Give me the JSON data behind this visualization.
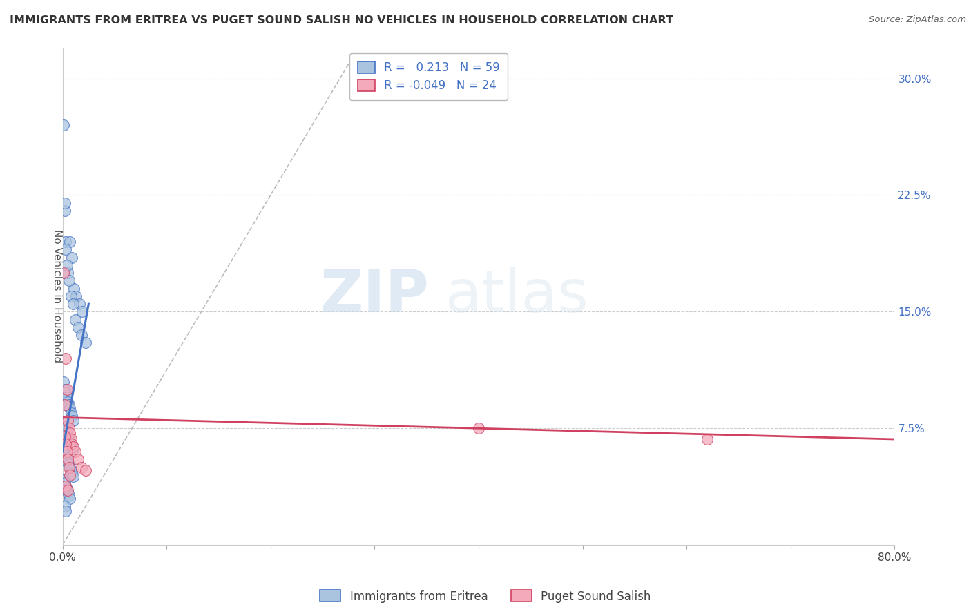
{
  "title": "IMMIGRANTS FROM ERITREA VS PUGET SOUND SALISH NO VEHICLES IN HOUSEHOLD CORRELATION CHART",
  "source": "Source: ZipAtlas.com",
  "ylabel": "No Vehicles in Household",
  "xlim": [
    0.0,
    0.8
  ],
  "ylim": [
    0.0,
    0.32
  ],
  "xticks": [
    0.0,
    0.1,
    0.2,
    0.3,
    0.4,
    0.5,
    0.6,
    0.7,
    0.8
  ],
  "xticklabels": [
    "0.0%",
    "",
    "",
    "",
    "",
    "",
    "",
    "",
    "80.0%"
  ],
  "yticks": [
    0.0,
    0.075,
    0.15,
    0.225,
    0.3
  ],
  "yticklabels": [
    "",
    "7.5%",
    "15.0%",
    "22.5%",
    "30.0%"
  ],
  "r1": 0.213,
  "n1": 59,
  "r2": -0.049,
  "n2": 24,
  "legend1": "Immigrants from Eritrea",
  "legend2": "Puget Sound Salish",
  "color1": "#aac4e0",
  "color2": "#f4aabb",
  "line_color1": "#4472c4",
  "line_color2": "#d04060",
  "watermark_zip": "ZIP",
  "watermark_atlas": "atlas",
  "blue_scatter_x": [
    0.001,
    0.002,
    0.003,
    0.005,
    0.007,
    0.009,
    0.011,
    0.013,
    0.016,
    0.019,
    0.002,
    0.003,
    0.004,
    0.006,
    0.008,
    0.01,
    0.012,
    0.015,
    0.018,
    0.022,
    0.001,
    0.002,
    0.003,
    0.004,
    0.005,
    0.006,
    0.007,
    0.008,
    0.009,
    0.01,
    0.001,
    0.002,
    0.003,
    0.004,
    0.005,
    0.006,
    0.007,
    0.008,
    0.009,
    0.01,
    0.001,
    0.002,
    0.003,
    0.004,
    0.005,
    0.006,
    0.007,
    0.008,
    0.009,
    0.01,
    0.001,
    0.002,
    0.003,
    0.004,
    0.005,
    0.006,
    0.007,
    0.002,
    0.003
  ],
  "blue_scatter_y": [
    0.27,
    0.215,
    0.195,
    0.175,
    0.195,
    0.185,
    0.165,
    0.16,
    0.155,
    0.15,
    0.22,
    0.19,
    0.18,
    0.17,
    0.16,
    0.155,
    0.145,
    0.14,
    0.135,
    0.13,
    0.105,
    0.1,
    0.098,
    0.095,
    0.092,
    0.09,
    0.088,
    0.085,
    0.083,
    0.08,
    0.078,
    0.076,
    0.074,
    0.072,
    0.07,
    0.068,
    0.066,
    0.065,
    0.063,
    0.062,
    0.06,
    0.058,
    0.056,
    0.055,
    0.053,
    0.052,
    0.05,
    0.048,
    0.046,
    0.044,
    0.042,
    0.04,
    0.038,
    0.036,
    0.034,
    0.032,
    0.03,
    0.025,
    0.022
  ],
  "pink_scatter_x": [
    0.001,
    0.002,
    0.003,
    0.004,
    0.005,
    0.006,
    0.007,
    0.008,
    0.009,
    0.01,
    0.012,
    0.015,
    0.018,
    0.022,
    0.002,
    0.003,
    0.004,
    0.005,
    0.006,
    0.007,
    0.4,
    0.62,
    0.003,
    0.005
  ],
  "pink_scatter_y": [
    0.175,
    0.09,
    0.12,
    0.1,
    0.08,
    0.075,
    0.072,
    0.068,
    0.065,
    0.063,
    0.06,
    0.055,
    0.05,
    0.048,
    0.07,
    0.065,
    0.06,
    0.055,
    0.05,
    0.045,
    0.075,
    0.068,
    0.038,
    0.035
  ],
  "blue_line_x0": 0.0,
  "blue_line_x1": 0.025,
  "blue_line_y0": 0.06,
  "blue_line_y1": 0.155,
  "pink_line_x0": 0.0,
  "pink_line_x1": 0.8,
  "pink_line_y0": 0.082,
  "pink_line_y1": 0.068,
  "dash_line_x0": 0.0,
  "dash_line_x1": 0.28,
  "dash_line_y0": 0.0,
  "dash_line_y1": 0.315
}
